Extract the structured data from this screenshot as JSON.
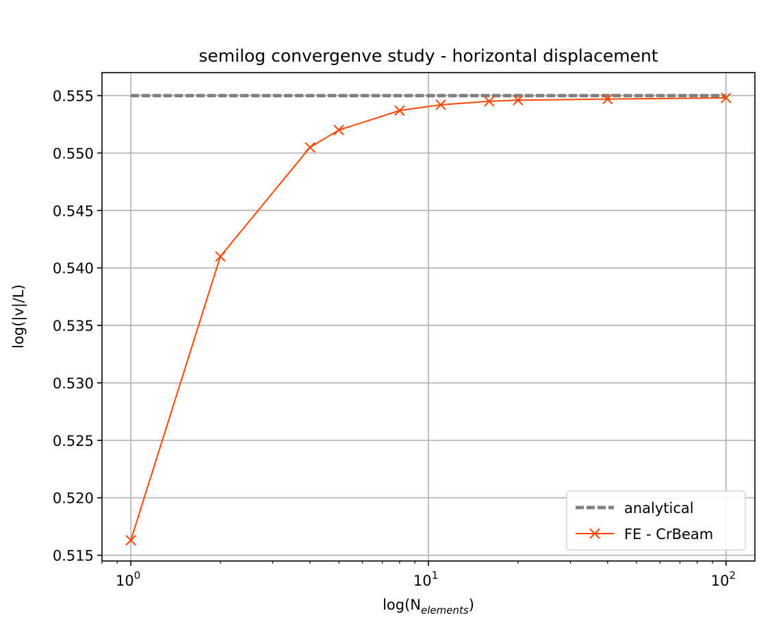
{
  "chart_data": {
    "type": "line",
    "title": "semilog convergenve study - horizontal displacement",
    "xlabel_main": "log(N",
    "xlabel_sub": "elements",
    "xlabel_close": ")",
    "ylabel": "log(|v|/L)",
    "xscale": "log",
    "xlim": [
      0.8,
      125
    ],
    "ylim": [
      0.5145,
      0.557
    ],
    "x_major_ticks": [
      {
        "value": 1,
        "base": "10",
        "exp": "0"
      },
      {
        "value": 10,
        "base": "10",
        "exp": "1"
      },
      {
        "value": 100,
        "base": "10",
        "exp": "2"
      }
    ],
    "y_ticks": [
      {
        "value": 0.515,
        "label": "0.515"
      },
      {
        "value": 0.52,
        "label": "0.520"
      },
      {
        "value": 0.525,
        "label": "0.525"
      },
      {
        "value": 0.53,
        "label": "0.530"
      },
      {
        "value": 0.535,
        "label": "0.535"
      },
      {
        "value": 0.54,
        "label": "0.540"
      },
      {
        "value": 0.545,
        "label": "0.545"
      },
      {
        "value": 0.55,
        "label": "0.550"
      },
      {
        "value": 0.555,
        "label": "0.555"
      }
    ],
    "grid": true,
    "legend_position": "bottom-right",
    "series": [
      {
        "name": "analytical",
        "style": "dashed",
        "color": "#808080",
        "x": [
          1,
          100
        ],
        "y": [
          0.555,
          0.555
        ]
      },
      {
        "name": "FE - CrBeam",
        "style": "solid",
        "marker": "x",
        "color": "#ff4500",
        "x": [
          1,
          2,
          4,
          5,
          8,
          11,
          16,
          20,
          40,
          100
        ],
        "y": [
          0.5163,
          0.541,
          0.5505,
          0.552,
          0.5537,
          0.5542,
          0.5545,
          0.5546,
          0.5547,
          0.5548
        ]
      }
    ]
  }
}
